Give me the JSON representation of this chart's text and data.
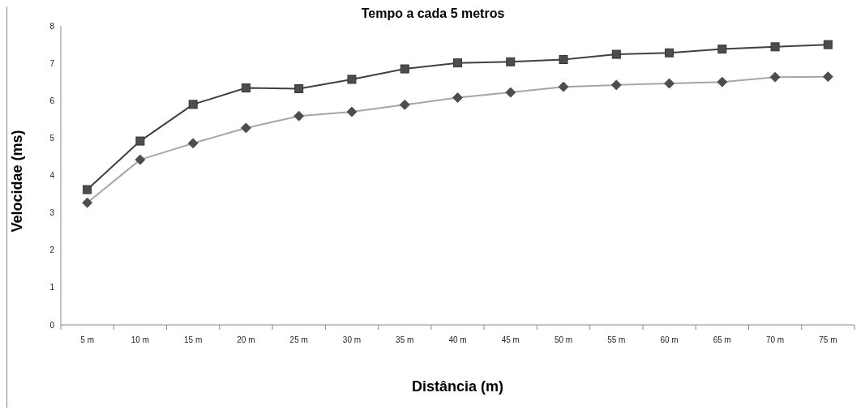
{
  "chart_data": {
    "type": "line",
    "title": "Tempo a cada 5 metros",
    "xlabel": "Distância (m)",
    "ylabel": "Velocidae (ms)",
    "categories": [
      "5 m",
      "10 m",
      "15 m",
      "20 m",
      "25 m",
      "30 m",
      "35 m",
      "40 m",
      "45 m",
      "50 m",
      "55 m",
      "60 m",
      "65 m",
      "70 m",
      "75 m"
    ],
    "series": [
      {
        "color": "#404040",
        "marker": "square",
        "values": [
          3.62,
          4.92,
          5.9,
          6.34,
          6.32,
          6.57,
          6.85,
          7.01,
          7.04,
          7.1,
          7.24,
          7.28,
          7.38,
          7.44,
          7.5
        ]
      },
      {
        "color": "#a6a6a6",
        "marker": "diamond",
        "values": [
          3.27,
          4.42,
          4.86,
          5.27,
          5.59,
          5.7,
          5.89,
          6.08,
          6.22,
          6.37,
          6.42,
          6.46,
          6.5,
          6.63,
          6.64
        ]
      }
    ],
    "ylim": [
      0,
      8
    ],
    "yticks": [
      0,
      1,
      2,
      3,
      4,
      5,
      6,
      7,
      8
    ],
    "grid": false
  }
}
